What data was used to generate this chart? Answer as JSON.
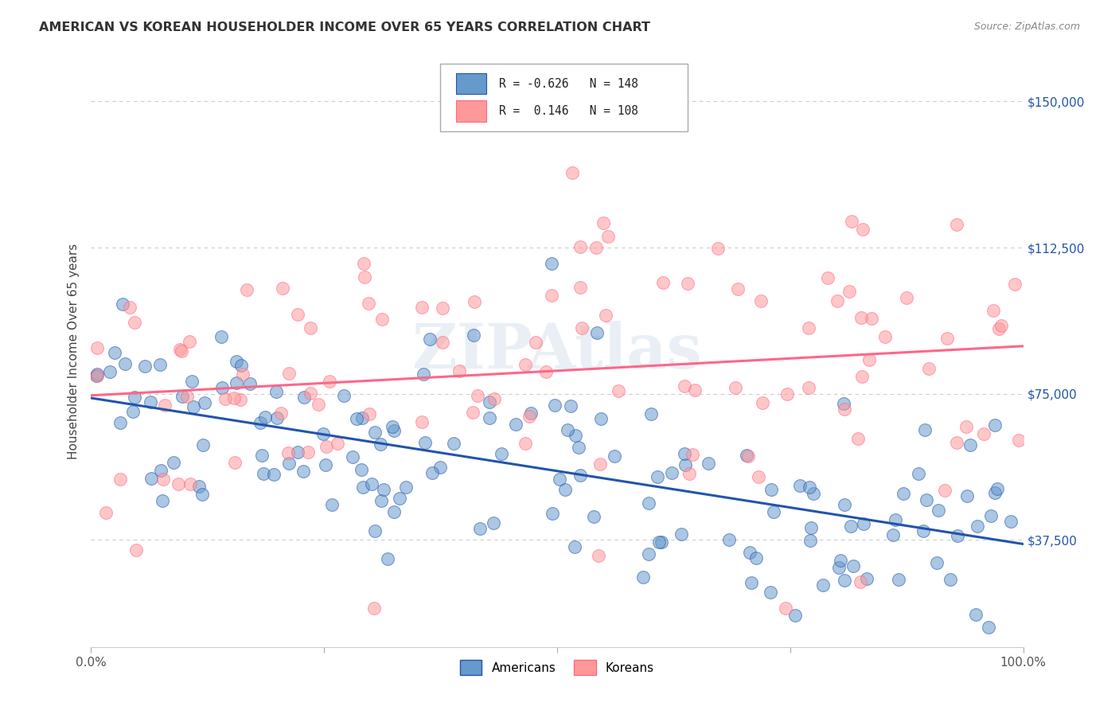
{
  "title": "AMERICAN VS KOREAN HOUSEHOLDER INCOME OVER 65 YEARS CORRELATION CHART",
  "source": "Source: ZipAtlas.com",
  "ylabel": "Householder Income Over 65 years",
  "ytick_labels": [
    "$37,500",
    "$75,000",
    "$112,500",
    "$150,000"
  ],
  "ytick_values": [
    37500,
    75000,
    112500,
    150000
  ],
  "ymin": 10000,
  "ymax": 162000,
  "xmin": 0.0,
  "xmax": 1.0,
  "american_R": -0.626,
  "american_N": 148,
  "korean_R": 0.146,
  "korean_N": 108,
  "american_color": "#6699CC",
  "korean_color": "#FF9999",
  "american_line_color": "#2255AA",
  "korean_line_color": "#FF6688",
  "background_color": "#FFFFFF",
  "grid_color": "#CCCCCC",
  "title_color": "#333333",
  "source_color": "#888888",
  "legend_label_americans": "Americans",
  "legend_label_koreans": "Koreans"
}
